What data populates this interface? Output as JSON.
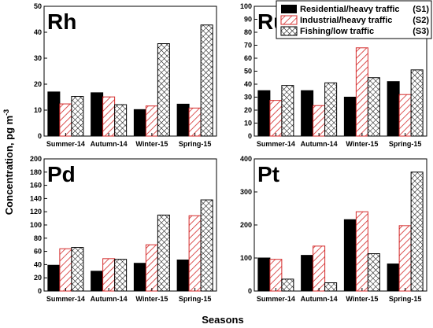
{
  "ylabel": "Concentration, pg m",
  "ylabel_sup": "-3",
  "xlabel": "Seasons",
  "legend": [
    {
      "name": "Residential/heavy traffic",
      "code": "(S1)"
    },
    {
      "name": "Industrial/heavy traffic",
      "code": "(S2)"
    },
    {
      "name": "Fishing/low traffic",
      "code": "(S3)"
    }
  ],
  "chart_data": [
    {
      "type": "bar",
      "panel": "Rh",
      "categories": [
        "Summer-14",
        "Autumn-14",
        "Winter-15",
        "Spring-15"
      ],
      "series": [
        {
          "name": "Residential/heavy traffic (S1)",
          "values": [
            17,
            16.7,
            10.2,
            12.3
          ]
        },
        {
          "name": "Industrial/heavy traffic (S2)",
          "values": [
            12.4,
            15.1,
            11.6,
            10.8
          ]
        },
        {
          "name": "Fishing/low traffic (S3)",
          "values": [
            15.3,
            12.1,
            35.6,
            42.8
          ]
        }
      ],
      "ylim": [
        0,
        50
      ],
      "yticks": [
        0,
        10,
        20,
        30,
        40,
        50
      ]
    },
    {
      "type": "bar",
      "panel": "Ru",
      "categories": [
        "Summer-14",
        "Autumn-14",
        "Winter-15",
        "Spring-15"
      ],
      "series": [
        {
          "name": "Residential/heavy traffic (S1)",
          "values": [
            35,
            35,
            30,
            42
          ]
        },
        {
          "name": "Industrial/heavy traffic (S2)",
          "values": [
            27.5,
            23.5,
            68,
            32
          ]
        },
        {
          "name": "Fishing/low traffic (S3)",
          "values": [
            39,
            41,
            45,
            51
          ]
        }
      ],
      "ylim": [
        0,
        100
      ],
      "yticks": [
        0,
        10,
        20,
        30,
        40,
        50,
        60,
        70,
        80,
        90,
        100
      ]
    },
    {
      "type": "bar",
      "panel": "Pd",
      "categories": [
        "Summer-14",
        "Autumn-14",
        "Winter-15",
        "Spring-15"
      ],
      "series": [
        {
          "name": "Residential/heavy traffic (S1)",
          "values": [
            39,
            30,
            42,
            47
          ]
        },
        {
          "name": "Industrial/heavy traffic (S2)",
          "values": [
            64,
            49,
            70,
            114
          ]
        },
        {
          "name": "Fishing/low traffic (S3)",
          "values": [
            66,
            48,
            115,
            138
          ]
        }
      ],
      "ylim": [
        0,
        200
      ],
      "yticks": [
        0,
        20,
        40,
        60,
        80,
        100,
        120,
        140,
        160,
        180,
        200
      ]
    },
    {
      "type": "bar",
      "panel": "Pt",
      "categories": [
        "Summer-14",
        "Autumn-14",
        "Winter-15",
        "Spring-15"
      ],
      "series": [
        {
          "name": "Residential/heavy traffic (S1)",
          "values": [
            100,
            108,
            216,
            82
          ]
        },
        {
          "name": "Industrial/heavy traffic (S2)",
          "values": [
            96,
            136,
            240,
            198
          ]
        },
        {
          "name": "Fishing/low traffic (S3)",
          "values": [
            36,
            25,
            113,
            360
          ]
        }
      ],
      "ylim": [
        0,
        400
      ],
      "yticks": [
        0,
        100,
        200,
        300,
        400
      ]
    }
  ],
  "colors": {
    "s1_fill": "#000000",
    "s2_stroke": "#d42a2a",
    "s3_stroke": "#000000",
    "background": "#ffffff"
  }
}
